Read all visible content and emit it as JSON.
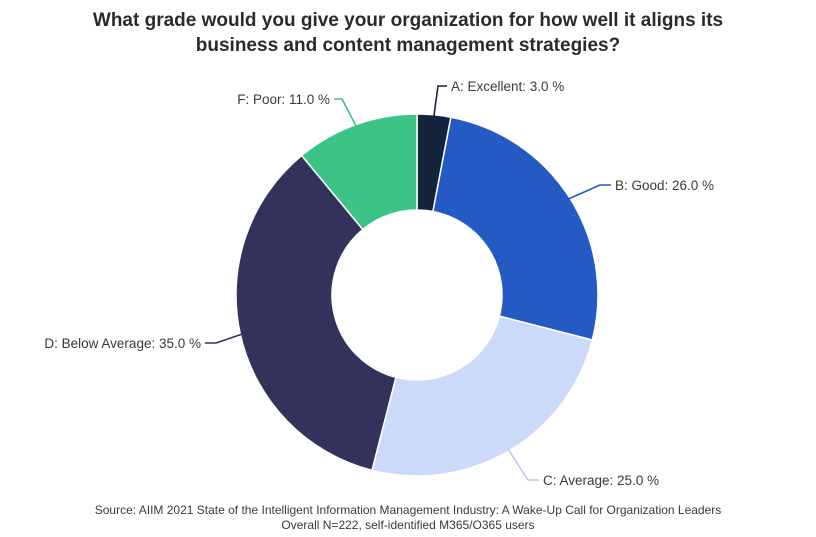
{
  "title_lines": [
    "What grade would you give your organization for how well it aligns its",
    "business and content management strategies?"
  ],
  "source_lines": [
    "Source: AIIM 2021 State of the Intelligent Information Management Industry: A Wake-Up Call for Organization Leaders",
    "Overall N=222, self-identified M365/O365 users"
  ],
  "chart_data": {
    "type": "pie",
    "variant": "donut",
    "title": "What grade would you give your organization for how well it aligns its business and content management strategies?",
    "unit": "%",
    "slices": [
      {
        "label": "A: Excellent: 3.0 %",
        "category": "A: Excellent",
        "value": 3.0,
        "color": "#14243c"
      },
      {
        "label": "B: Good: 26.0 %",
        "category": "B: Good",
        "value": 26.0,
        "color": "#245ac4"
      },
      {
        "label": "C: Average: 25.0 %",
        "category": "C: Average",
        "value": 25.0,
        "color": "#ccdafa"
      },
      {
        "label": "D: Below Average: 35.0 %",
        "category": "D: Below Average",
        "value": 35.0,
        "color": "#33325a"
      },
      {
        "label": "F: Poor: 11.0 %",
        "category": "F: Poor",
        "value": 11.0,
        "color": "#3cc486"
      }
    ]
  }
}
